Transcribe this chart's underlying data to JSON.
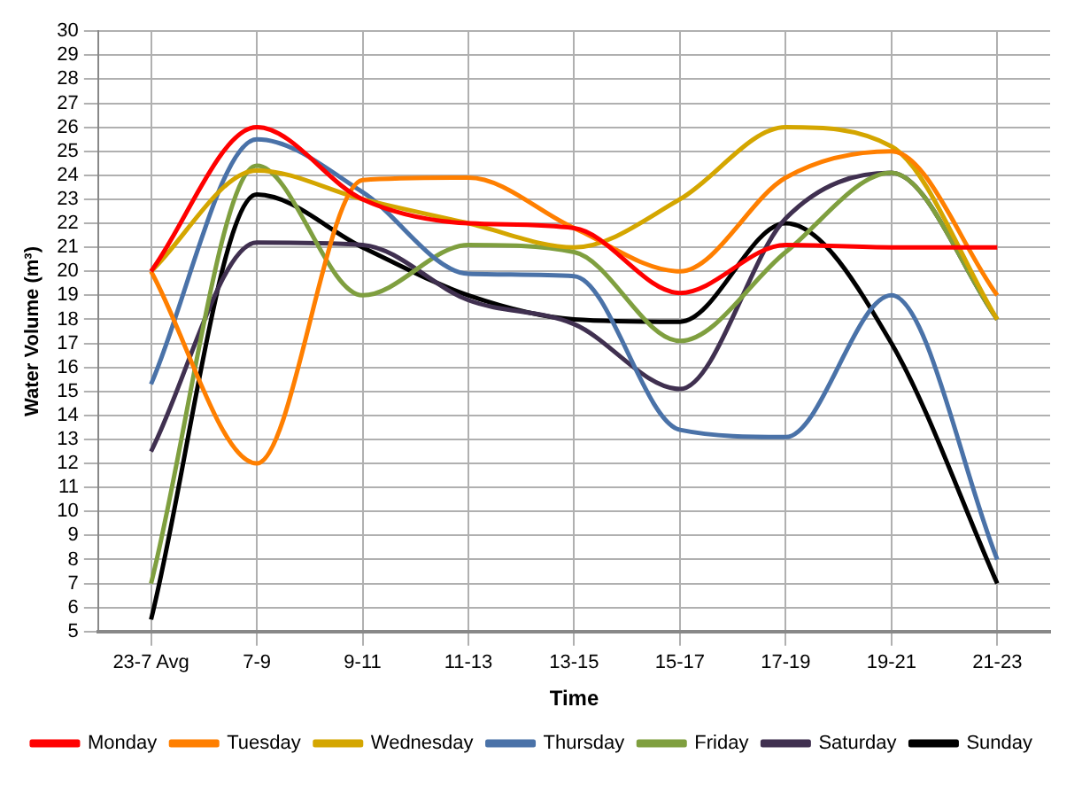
{
  "chart_data": {
    "type": "line",
    "xlabel": "Time",
    "ylabel": "Water Volume (m³)",
    "categories": [
      "23-7 Avg",
      "7-9",
      "9-11",
      "11-13",
      "13-15",
      "15-17",
      "17-19",
      "19-21",
      "21-23"
    ],
    "series": [
      {
        "name": "Monday",
        "color": "#ff0000",
        "values": [
          20,
          26,
          23,
          22,
          21.8,
          19.1,
          21.1,
          21,
          21
        ]
      },
      {
        "name": "Tuesday",
        "color": "#ff7f00",
        "values": [
          20,
          12,
          23.8,
          23.9,
          21.8,
          20,
          23.9,
          25,
          19
        ]
      },
      {
        "name": "Wednesday",
        "color": "#d4a600",
        "values": [
          20,
          24.2,
          23,
          22,
          21,
          23,
          26,
          25.2,
          18
        ]
      },
      {
        "name": "Thursday",
        "color": "#4a72a8",
        "values": [
          15.3,
          25.5,
          23.3,
          19.9,
          19.8,
          13.4,
          13.1,
          19,
          8
        ]
      },
      {
        "name": "Friday",
        "color": "#7f9f3f",
        "values": [
          7,
          24.4,
          19,
          21.1,
          20.8,
          17.1,
          20.8,
          24.1,
          18
        ]
      },
      {
        "name": "Saturday",
        "color": "#403050",
        "values": [
          12.5,
          21.2,
          21.1,
          18.8,
          17.8,
          15.1,
          22.2,
          24.1,
          18
        ]
      },
      {
        "name": "Sunday",
        "color": "#000000",
        "values": [
          5.5,
          23.2,
          21,
          19,
          18,
          17.9,
          22,
          17,
          7
        ]
      }
    ],
    "ylim": [
      5,
      30
    ],
    "yticks": [
      5,
      6,
      7,
      8,
      9,
      10,
      11,
      12,
      13,
      14,
      15,
      16,
      17,
      18,
      19,
      20,
      21,
      22,
      23,
      24,
      25,
      26,
      27,
      28,
      29,
      30
    ],
    "grid": true,
    "legend": "bottom",
    "marker": "none",
    "line_style": "solid"
  }
}
